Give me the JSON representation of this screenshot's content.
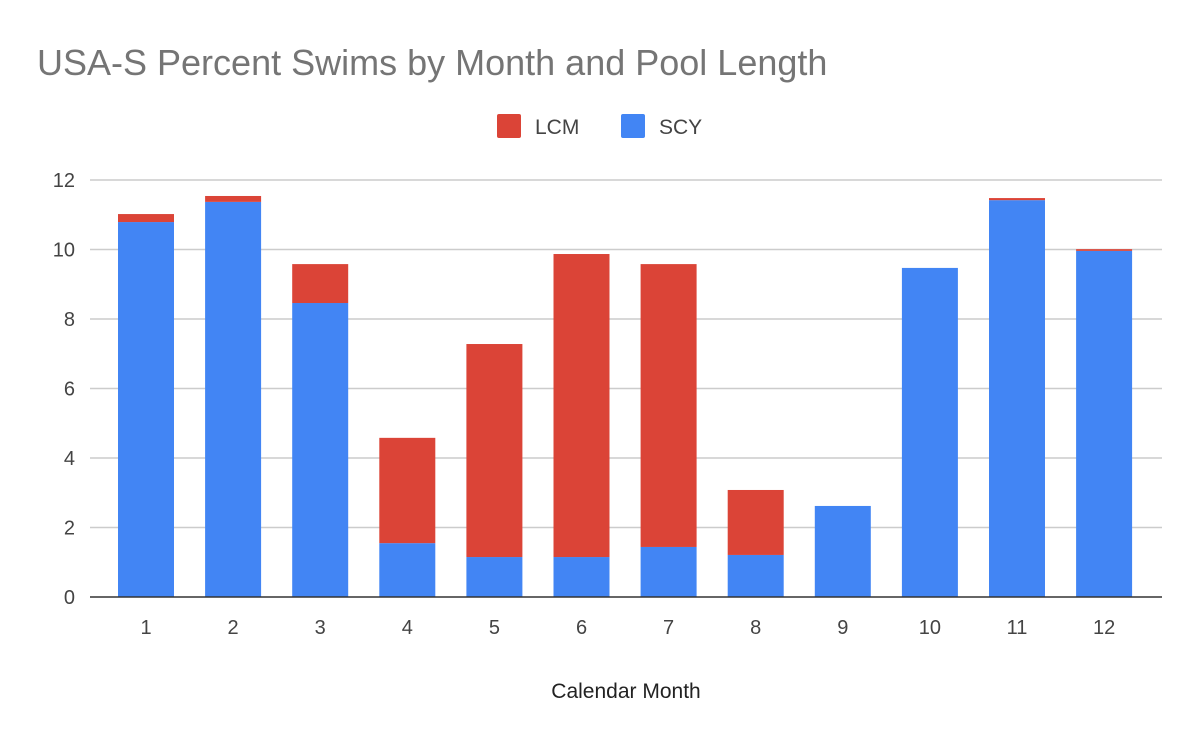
{
  "chart_data": {
    "type": "bar",
    "stacked": true,
    "title": "USA-S Percent Swims by Month and Pool Length",
    "xlabel": "Calendar Month",
    "ylabel": "",
    "categories": [
      "1",
      "2",
      "3",
      "4",
      "5",
      "6",
      "7",
      "8",
      "9",
      "10",
      "11",
      "12"
    ],
    "series": [
      {
        "name": "SCY",
        "color": "#4285f4",
        "values": [
          10.79,
          11.37,
          8.46,
          1.55,
          1.15,
          1.15,
          1.44,
          1.21,
          2.62,
          9.47,
          11.42,
          9.96
        ]
      },
      {
        "name": "LCM",
        "color": "#db4437",
        "values": [
          0.23,
          0.17,
          1.12,
          3.03,
          6.13,
          8.72,
          8.14,
          1.87,
          0.0,
          0.0,
          0.06,
          0.05
        ]
      }
    ],
    "legend_order": [
      "LCM",
      "SCY"
    ],
    "legend_position": "top",
    "ylim": [
      0,
      12
    ],
    "yticks": [
      0,
      2,
      4,
      6,
      8,
      10,
      12
    ],
    "grid": true
  }
}
